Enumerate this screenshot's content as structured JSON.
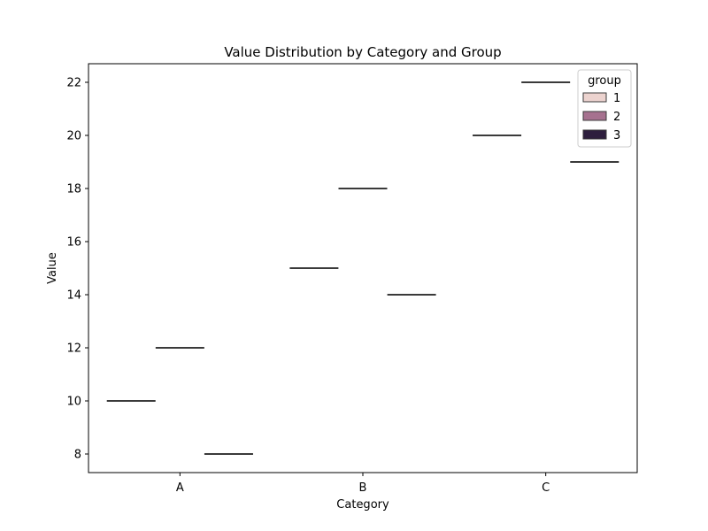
{
  "chart_data": {
    "type": "box",
    "title": "Value Distribution by Category and Group",
    "xlabel": "Category",
    "ylabel": "Value",
    "categories": [
      "A",
      "B",
      "C"
    ],
    "yticks": [
      8,
      10,
      12,
      14,
      16,
      18,
      20,
      22
    ],
    "ylim": [
      7.3,
      22.7
    ],
    "legend": {
      "title": "group",
      "placement": "top-right",
      "entries": [
        {
          "label": "1",
          "color": "#ecd3cf"
        },
        {
          "label": "2",
          "color": "#a6718f"
        },
        {
          "label": "3",
          "color": "#2d1e3d"
        }
      ]
    },
    "series": [
      {
        "name": "1",
        "color": "#ecd3cf",
        "values": [
          10,
          15,
          20
        ]
      },
      {
        "name": "2",
        "color": "#a6718f",
        "values": [
          12,
          18,
          22
        ]
      },
      {
        "name": "3",
        "color": "#2d1e3d",
        "values": [
          8,
          14,
          19
        ]
      }
    ],
    "grid": false
  }
}
